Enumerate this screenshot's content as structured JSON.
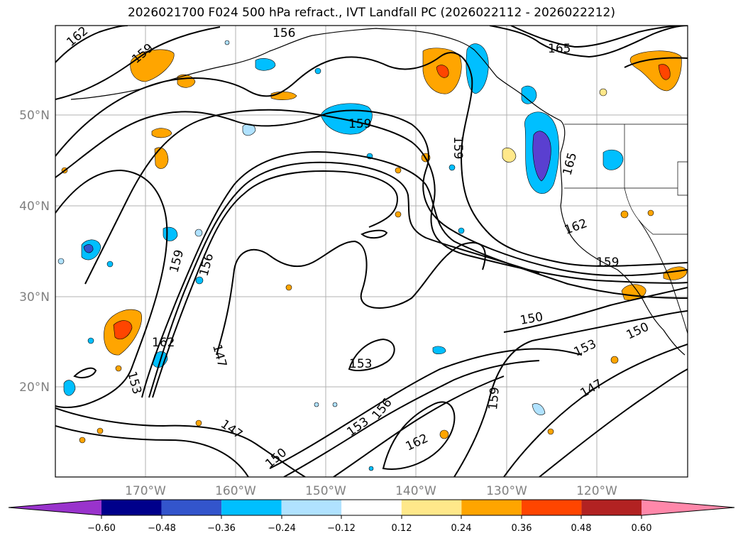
{
  "title": "2026021700 F024 500 hPa refract., IVT Landfall PC (2026022112 - 2026022212)",
  "map": {
    "lat_labels": [
      "50°N",
      "40°N",
      "30°N",
      "20°N"
    ],
    "lon_labels": [
      "170°W",
      "160°W",
      "150°W",
      "140°W",
      "130°W",
      "120°W"
    ],
    "contour_labels": [
      "162",
      "159",
      "156",
      "159",
      "165",
      "159",
      "165",
      "162",
      "159",
      "159",
      "156",
      "162",
      "153",
      "147",
      "153",
      "147",
      "150",
      "153",
      "156",
      "162",
      "159",
      "150",
      "153",
      "150",
      "147"
    ]
  },
  "colorbar": {
    "ticks": [
      "−0.60",
      "−0.48",
      "−0.36",
      "−0.24",
      "−0.12",
      "0.12",
      "0.24",
      "0.36",
      "0.48",
      "0.60"
    ],
    "colors": [
      "#9933cc",
      "#00008b",
      "#3355cc",
      "#00bfff",
      "#b0e2ff",
      "#ffffff",
      "#ffe88a",
      "#ffa500",
      "#ff4500",
      "#b22222",
      "#ff88aa"
    ]
  }
}
